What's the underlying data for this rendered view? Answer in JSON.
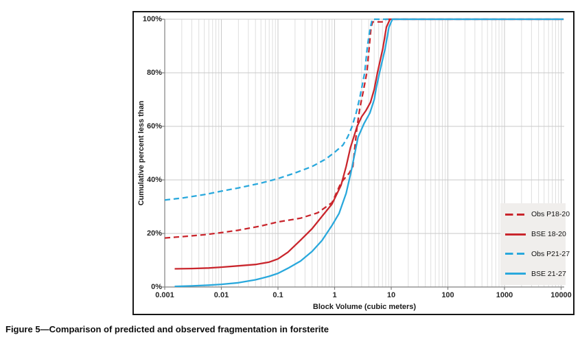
{
  "figure": {
    "caption": "Figure 5—Comparison of predicted and observed fragmentation in forsterite"
  },
  "colors": {
    "red_series": "#c9252c",
    "cyan_series": "#29a8dc",
    "grid_minor": "#dedede",
    "grid_major": "#c9c9c9",
    "axis_line": "#7f7f7f",
    "legend_bg": "#f0eeec"
  },
  "chart_data": {
    "type": "line",
    "title": "",
    "x_axis": {
      "label": "Block Volume (cubic meters)",
      "scale": "log",
      "min": 0.001,
      "max": 10000,
      "tick_labels": [
        "0.001",
        "0.01",
        "0.1",
        "1",
        "10",
        "100",
        "1000",
        "10000"
      ]
    },
    "y_axis": {
      "label": "Cumulative percent less than",
      "min": 0,
      "max": 100,
      "tick_step": 20,
      "tick_labels": [
        "0%",
        "20%",
        "40%",
        "60%",
        "80%",
        "100%"
      ]
    },
    "grid": {
      "vertical_log_minor": true,
      "horizontal_major": true
    },
    "legend_position": "inside-lower-right",
    "series": [
      {
        "name": "Obs P18-20",
        "color": "#c9252c",
        "style": "dashed",
        "points": [
          [
            0.001,
            18.3
          ],
          [
            0.002,
            18.8
          ],
          [
            0.005,
            19.5
          ],
          [
            0.01,
            20.3
          ],
          [
            0.02,
            21.2
          ],
          [
            0.05,
            22.8
          ],
          [
            0.1,
            24.3
          ],
          [
            0.25,
            25.7
          ],
          [
            0.5,
            27.7
          ],
          [
            0.9,
            31.5
          ],
          [
            1.3,
            39
          ],
          [
            1.8,
            42.5
          ],
          [
            2.1,
            45
          ],
          [
            2.3,
            53
          ],
          [
            2.5,
            60
          ],
          [
            2.8,
            67
          ],
          [
            3.2,
            73
          ],
          [
            3.7,
            80
          ],
          [
            4.1,
            90
          ],
          [
            4.4,
            97
          ],
          [
            4.7,
            99
          ],
          [
            7.5,
            99
          ],
          [
            8,
            100
          ],
          [
            11000,
            100
          ]
        ]
      },
      {
        "name": "BSE 18-20",
        "color": "#c9252c",
        "style": "solid",
        "points": [
          [
            0.0015,
            6.8
          ],
          [
            0.003,
            6.9
          ],
          [
            0.006,
            7.1
          ],
          [
            0.01,
            7.4
          ],
          [
            0.02,
            7.9
          ],
          [
            0.04,
            8.4
          ],
          [
            0.07,
            9.3
          ],
          [
            0.1,
            10.5
          ],
          [
            0.15,
            13
          ],
          [
            0.25,
            17.5
          ],
          [
            0.4,
            21.8
          ],
          [
            0.6,
            26.4
          ],
          [
            0.9,
            31
          ],
          [
            1.3,
            38
          ],
          [
            1.6,
            45
          ],
          [
            1.9,
            52
          ],
          [
            2.5,
            60
          ],
          [
            3,
            63.6
          ],
          [
            3.6,
            66
          ],
          [
            4.3,
            69
          ],
          [
            5,
            73.8
          ],
          [
            5.7,
            80
          ],
          [
            7.1,
            89
          ],
          [
            8.2,
            97
          ],
          [
            9.5,
            100
          ],
          [
            11000,
            100
          ]
        ]
      },
      {
        "name": "Obs P21-27",
        "color": "#29a8dc",
        "style": "dashed",
        "points": [
          [
            0.001,
            32.5
          ],
          [
            0.002,
            33.2
          ],
          [
            0.005,
            34.5
          ],
          [
            0.01,
            35.8
          ],
          [
            0.02,
            37
          ],
          [
            0.05,
            38.8
          ],
          [
            0.1,
            40.5
          ],
          [
            0.2,
            42.6
          ],
          [
            0.4,
            45
          ],
          [
            0.7,
            47.8
          ],
          [
            1,
            50.3
          ],
          [
            1.4,
            53
          ],
          [
            1.7,
            56
          ],
          [
            2,
            59.5
          ],
          [
            2.4,
            65
          ],
          [
            2.8,
            71
          ],
          [
            3.4,
            80
          ],
          [
            3.8,
            90
          ],
          [
            4.2,
            96
          ],
          [
            4.6,
            100
          ],
          [
            11000,
            100
          ]
        ]
      },
      {
        "name": "BSE 21-27",
        "color": "#29a8dc",
        "style": "solid",
        "points": [
          [
            0.0015,
            0.2
          ],
          [
            0.003,
            0.4
          ],
          [
            0.006,
            0.7
          ],
          [
            0.01,
            1
          ],
          [
            0.02,
            1.6
          ],
          [
            0.04,
            2.7
          ],
          [
            0.07,
            4
          ],
          [
            0.1,
            5.1
          ],
          [
            0.15,
            7
          ],
          [
            0.25,
            9.7
          ],
          [
            0.4,
            13.3
          ],
          [
            0.6,
            17.4
          ],
          [
            0.9,
            23
          ],
          [
            1.2,
            27.5
          ],
          [
            1.6,
            35
          ],
          [
            2,
            44
          ],
          [
            2.6,
            56
          ],
          [
            3.3,
            61
          ],
          [
            4.2,
            65
          ],
          [
            5,
            70
          ],
          [
            5.4,
            74
          ],
          [
            6.2,
            80
          ],
          [
            7.8,
            89
          ],
          [
            9.1,
            97
          ],
          [
            10.5,
            100
          ],
          [
            11000,
            100
          ]
        ]
      }
    ]
  }
}
